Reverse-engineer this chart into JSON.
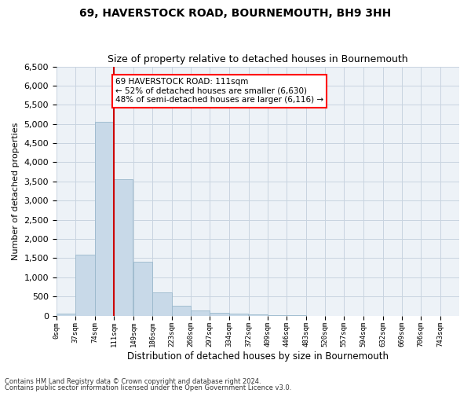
{
  "title": "69, HAVERSTOCK ROAD, BOURNEMOUTH, BH9 3HH",
  "subtitle": "Size of property relative to detached houses in Bournemouth",
  "xlabel": "Distribution of detached houses by size in Bournemouth",
  "ylabel": "Number of detached properties",
  "footnote1": "Contains HM Land Registry data © Crown copyright and database right 2024.",
  "footnote2": "Contains public sector information licensed under the Open Government Licence v3.0.",
  "annotation_line1": "69 HAVERSTOCK ROAD: 111sqm",
  "annotation_line2": "← 52% of detached houses are smaller (6,630)",
  "annotation_line3": "48% of semi-detached houses are larger (6,116) →",
  "property_size": 111,
  "bar_color": "#c8d9e8",
  "bar_edge_color": "#9ab8cc",
  "vline_color": "#cc0000",
  "grid_color": "#c8d4e0",
  "background_color": "#edf2f7",
  "categories": [
    "0sqm",
    "37sqm",
    "74sqm",
    "111sqm",
    "149sqm",
    "186sqm",
    "223sqm",
    "260sqm",
    "297sqm",
    "334sqm",
    "372sqm",
    "409sqm",
    "446sqm",
    "483sqm",
    "520sqm",
    "557sqm",
    "594sqm",
    "632sqm",
    "669sqm",
    "706sqm",
    "743sqm"
  ],
  "bin_edges": [
    0,
    37,
    74,
    111,
    149,
    186,
    223,
    260,
    297,
    334,
    372,
    409,
    446,
    483,
    520,
    557,
    594,
    632,
    669,
    706,
    743,
    780
  ],
  "values": [
    50,
    1600,
    5050,
    3550,
    1400,
    600,
    260,
    130,
    75,
    45,
    25,
    10,
    5,
    0,
    0,
    0,
    0,
    0,
    0,
    0,
    0
  ],
  "ylim": [
    0,
    6500
  ],
  "yticks": [
    0,
    500,
    1000,
    1500,
    2000,
    2500,
    3000,
    3500,
    4000,
    4500,
    5000,
    5500,
    6000,
    6500
  ]
}
